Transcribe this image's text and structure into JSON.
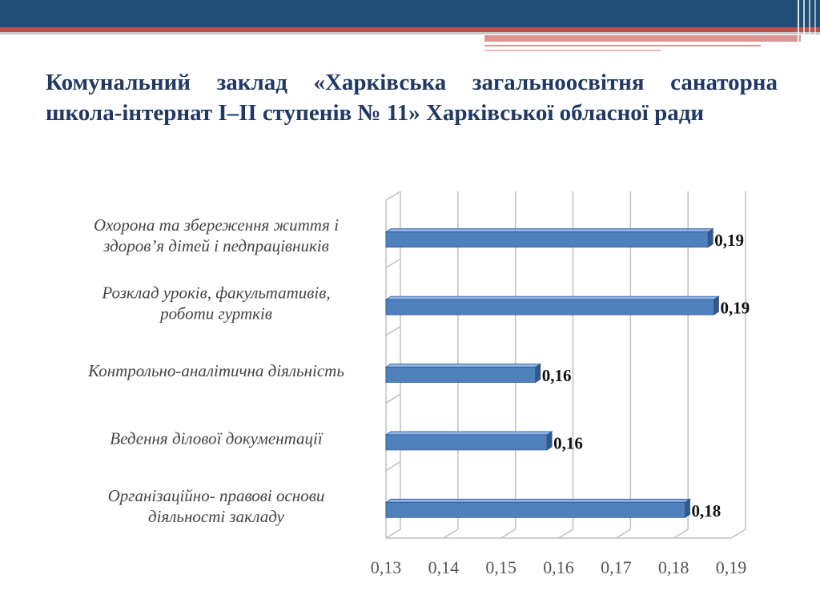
{
  "slide": {
    "title": "Комунальний заклад «Харківська загальноосвітня санаторна школа-інтернат І–ІІ ступенів № 11» Харківської обласної ради"
  },
  "colors": {
    "header_navy": "#1f4e79",
    "header_red": "#c0504d",
    "bar_fill": "#4f81bd",
    "grid": "#bfbfbf",
    "title_text": "#1f3864"
  },
  "chart_data": {
    "type": "bar",
    "orientation": "horizontal",
    "title": "",
    "xlabel": "",
    "ylabel": "",
    "xlim": [
      0.13,
      0.19
    ],
    "x_ticks": [
      "0,13",
      "0,14",
      "0,15",
      "0,16",
      "0,17",
      "0,18",
      "0,19"
    ],
    "grid": true,
    "categories": [
      [
        "Охорона та збереження життя і",
        "здоров’я дітей і педпрацівників"
      ],
      [
        "Розклад уроків, факультативів,",
        "роботи гуртків"
      ],
      [
        "Контрольно-аналітична діяльність"
      ],
      [
        "Ведення ділової документації"
      ],
      [
        "Організаційно- правові основи",
        "діяльності закладу"
      ]
    ],
    "values": [
      0.186,
      0.187,
      0.156,
      0.158,
      0.182
    ],
    "value_labels": [
      "0,19",
      "0,19",
      "0,16",
      "0,16",
      "0,18"
    ]
  }
}
